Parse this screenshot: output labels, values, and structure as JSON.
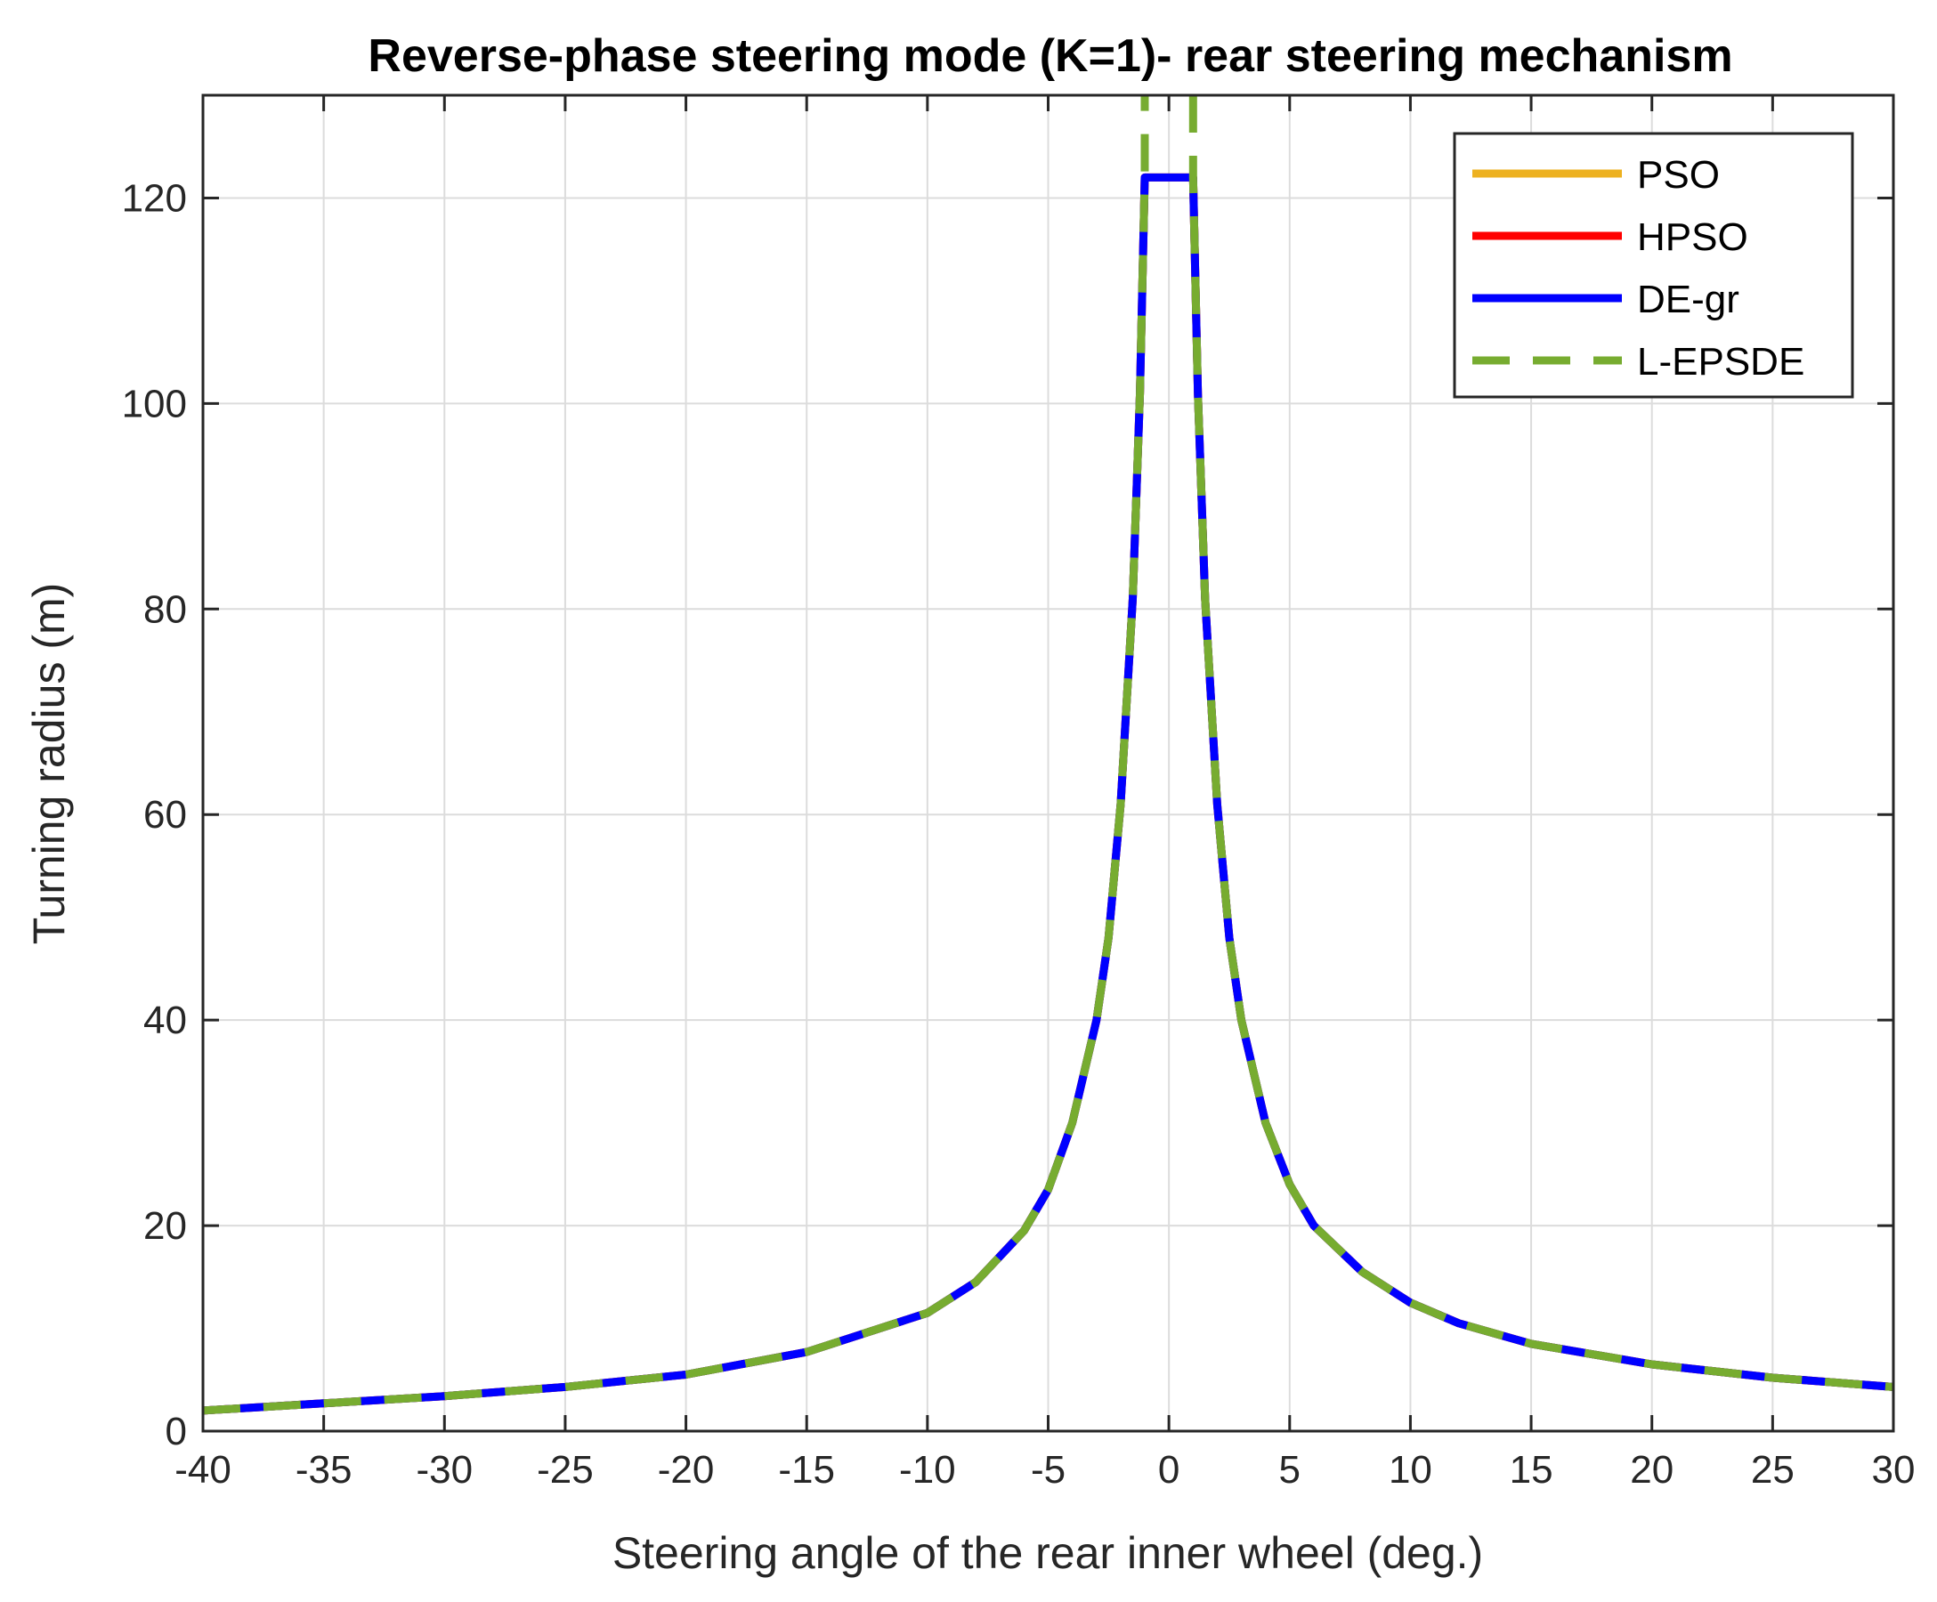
{
  "chart_data": {
    "type": "line",
    "title": "Reverse-phase steering mode (K=1)- rear steering mechanism",
    "xlabel": "Steering angle of the rear inner wheel (deg.)",
    "ylabel": "Turning radius (m)",
    "xlim": [
      -40,
      30
    ],
    "ylim": [
      0,
      130
    ],
    "xticks": [
      -40,
      -35,
      -30,
      -25,
      -20,
      -15,
      -10,
      -5,
      0,
      5,
      10,
      15,
      20,
      25,
      30
    ],
    "xtick_labels": [
      "-40",
      "-35",
      "-30",
      "-25",
      "-20",
      "-15",
      "-10",
      "-5",
      "0",
      "5",
      "10",
      "15",
      "20",
      "25",
      "30"
    ],
    "yticks": [
      0,
      20,
      40,
      60,
      80,
      100,
      120
    ],
    "ytick_labels": [
      "0",
      "20",
      "40",
      "60",
      "80",
      "100",
      "120"
    ],
    "grid": true,
    "legend_position": "top-right",
    "series": [
      {
        "name": "PSO",
        "color": "#EDB120",
        "style": "solid",
        "points": [
          [
            -40,
            2.0
          ],
          [
            -35,
            2.7
          ],
          [
            -30,
            3.4
          ],
          [
            -25,
            4.3
          ],
          [
            -20,
            5.5
          ],
          [
            -15,
            7.7
          ],
          [
            -10,
            11.5
          ],
          [
            -8,
            14.5
          ],
          [
            -6,
            19.5
          ],
          [
            -5,
            23.5
          ],
          [
            -4,
            30
          ],
          [
            -3,
            40
          ],
          [
            -2.5,
            48
          ],
          [
            -2,
            61
          ],
          [
            -1.5,
            81
          ],
          [
            -1.2,
            101
          ],
          [
            -1,
            122
          ],
          [
            1,
            122
          ],
          [
            1.2,
            101
          ],
          [
            1.5,
            81
          ],
          [
            2,
            61
          ],
          [
            2.5,
            48
          ],
          [
            3,
            40
          ],
          [
            4,
            30
          ],
          [
            5,
            24
          ],
          [
            6,
            20
          ],
          [
            8,
            15.5
          ],
          [
            10,
            12.5
          ],
          [
            12,
            10.5
          ],
          [
            15,
            8.5
          ],
          [
            20,
            6.5
          ],
          [
            25,
            5.2
          ],
          [
            30,
            4.3
          ]
        ]
      },
      {
        "name": "HPSO",
        "color": "#FF0000",
        "style": "solid",
        "points": [
          [
            -40,
            2.0
          ],
          [
            -35,
            2.7
          ],
          [
            -30,
            3.4
          ],
          [
            -25,
            4.3
          ],
          [
            -20,
            5.5
          ],
          [
            -15,
            7.7
          ],
          [
            -10,
            11.5
          ],
          [
            -8,
            14.5
          ],
          [
            -6,
            19.5
          ],
          [
            -5,
            23.5
          ],
          [
            -4,
            30
          ],
          [
            -3,
            40
          ],
          [
            -2.5,
            48
          ],
          [
            -2,
            61
          ],
          [
            -1.5,
            81
          ],
          [
            -1.2,
            101
          ],
          [
            -1,
            122
          ],
          [
            1,
            122
          ],
          [
            1.2,
            101
          ],
          [
            1.5,
            81
          ],
          [
            2,
            61
          ],
          [
            2.5,
            48
          ],
          [
            3,
            40
          ],
          [
            4,
            30
          ],
          [
            5,
            24
          ],
          [
            6,
            20
          ],
          [
            8,
            15.5
          ],
          [
            10,
            12.5
          ],
          [
            12,
            10.5
          ],
          [
            15,
            8.5
          ],
          [
            20,
            6.5
          ],
          [
            25,
            5.2
          ],
          [
            30,
            4.3
          ]
        ]
      },
      {
        "name": "DE-gr",
        "color": "#0000FF",
        "style": "solid",
        "points": [
          [
            -40,
            2.0
          ],
          [
            -35,
            2.7
          ],
          [
            -30,
            3.4
          ],
          [
            -25,
            4.3
          ],
          [
            -20,
            5.5
          ],
          [
            -15,
            7.7
          ],
          [
            -10,
            11.5
          ],
          [
            -8,
            14.5
          ],
          [
            -6,
            19.5
          ],
          [
            -5,
            23.5
          ],
          [
            -4,
            30
          ],
          [
            -3,
            40
          ],
          [
            -2.5,
            48
          ],
          [
            -2,
            61
          ],
          [
            -1.5,
            81
          ],
          [
            -1.2,
            101
          ],
          [
            -1,
            122
          ],
          [
            1,
            122
          ],
          [
            1.2,
            101
          ],
          [
            1.5,
            81
          ],
          [
            2,
            61
          ],
          [
            2.5,
            48
          ],
          [
            3,
            40
          ],
          [
            4,
            30
          ],
          [
            5,
            24
          ],
          [
            6,
            20
          ],
          [
            8,
            15.5
          ],
          [
            10,
            12.5
          ],
          [
            12,
            10.5
          ],
          [
            15,
            8.5
          ],
          [
            20,
            6.5
          ],
          [
            25,
            5.2
          ],
          [
            30,
            4.3
          ]
        ]
      },
      {
        "name": "L-EPSDE",
        "color": "#77AC30",
        "style": "dashed",
        "points": [
          [
            -40,
            2.0
          ],
          [
            -35,
            2.7
          ],
          [
            -30,
            3.4
          ],
          [
            -25,
            4.3
          ],
          [
            -20,
            5.5
          ],
          [
            -15,
            7.7
          ],
          [
            -10,
            11.5
          ],
          [
            -8,
            14.5
          ],
          [
            -6,
            19.5
          ],
          [
            -5,
            23.5
          ],
          [
            -4,
            30
          ],
          [
            -3,
            40
          ],
          [
            -2.5,
            48
          ],
          [
            -2,
            61
          ],
          [
            -1.5,
            81
          ],
          [
            -1.2,
            101
          ],
          [
            -1,
            122
          ],
          [
            -1,
            130
          ]
        ],
        "points_right": [
          [
            1,
            130
          ],
          [
            1,
            122
          ],
          [
            1.2,
            101
          ],
          [
            1.5,
            81
          ],
          [
            2,
            61
          ],
          [
            2.5,
            48
          ],
          [
            3,
            40
          ],
          [
            4,
            30
          ],
          [
            5,
            24
          ],
          [
            6,
            20
          ],
          [
            8,
            15.5
          ],
          [
            10,
            12.5
          ],
          [
            12,
            10.5
          ],
          [
            15,
            8.5
          ],
          [
            20,
            6.5
          ],
          [
            25,
            5.2
          ],
          [
            30,
            4.3
          ]
        ]
      }
    ]
  }
}
